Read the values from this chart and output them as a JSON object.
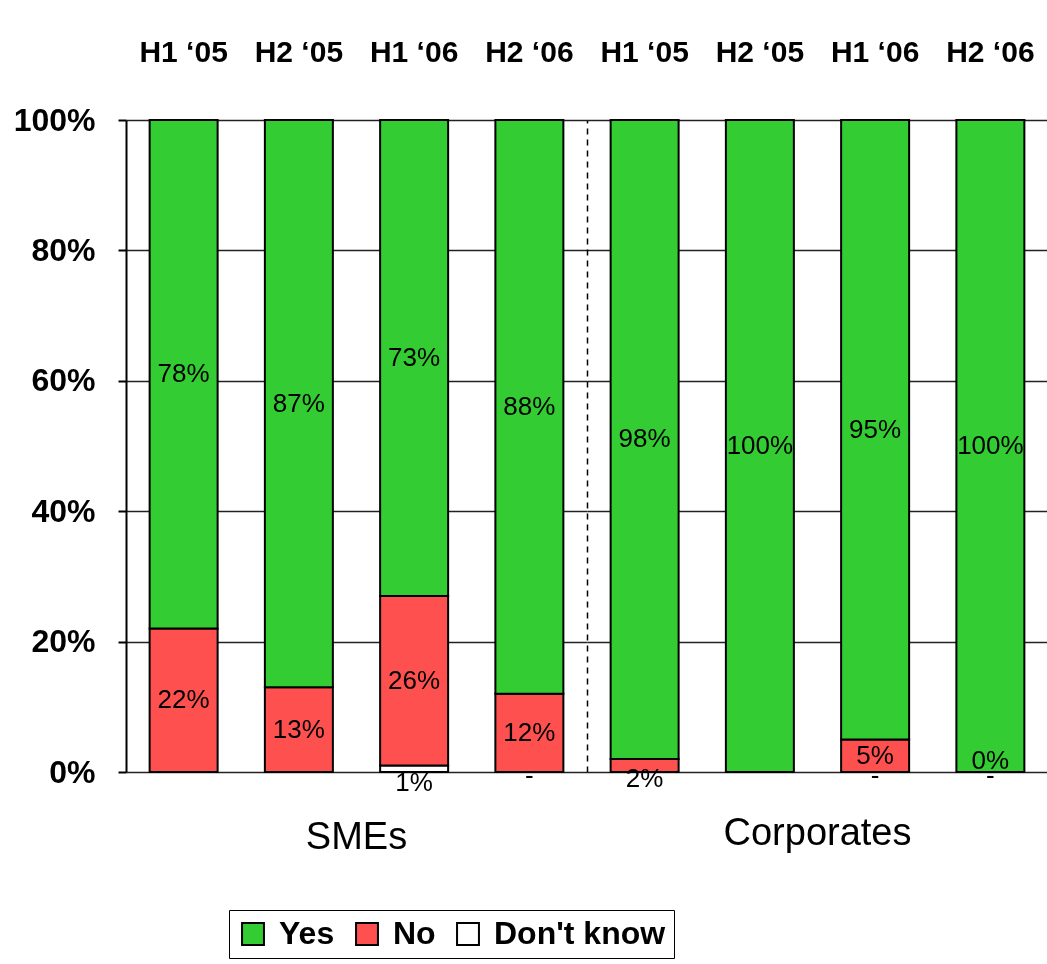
{
  "chart_data": [
    {
      "type": "bar",
      "stacked": true,
      "xlabel": "SMEs",
      "categories": [
        "H1 ‘05",
        "H2 ‘05",
        "H1 ‘06",
        "H2 ‘06"
      ],
      "series": [
        {
          "name": "Don't know",
          "color": "#ffffff",
          "values": [
            null,
            null,
            1,
            0
          ],
          "value_labels": [
            null,
            null,
            "1%",
            null
          ]
        },
        {
          "name": "No",
          "color": "#ff5050",
          "values": [
            22,
            13,
            26,
            12
          ],
          "value_labels": [
            "22%",
            "13%",
            "26%",
            "12%"
          ]
        },
        {
          "name": "Yes",
          "color": "#33cc33",
          "values": [
            78,
            87,
            73,
            88
          ],
          "value_labels": [
            "78%",
            "87%",
            "73%",
            "88%"
          ]
        }
      ],
      "annotations": [
        {
          "text": "-",
          "x": "H2 ‘06",
          "y": 0
        }
      ],
      "ylim": [
        0,
        100
      ],
      "yticks": [
        {
          "value": 0,
          "label": "0%"
        },
        {
          "value": 20,
          "label": "20%"
        },
        {
          "value": 40,
          "label": "40%"
        },
        {
          "value": 60,
          "label": "60%"
        },
        {
          "value": 80,
          "label": "80%"
        },
        {
          "value": 100,
          "label": "100%"
        }
      ],
      "grid": "y",
      "legend": "bottom"
    },
    {
      "type": "bar",
      "stacked": true,
      "xlabel": "Corporates",
      "categories": [
        "H1 ‘05",
        "H2 ‘05",
        "H1 ‘06",
        "H2 ‘06"
      ],
      "series": [
        {
          "name": "Don't know",
          "color": "#ffffff",
          "values": [
            null,
            null,
            0,
            0
          ]
        },
        {
          "name": "No",
          "color": "#ff5050",
          "values": [
            2,
            null,
            5,
            0
          ],
          "value_labels": [
            "2%",
            null,
            "5%",
            null
          ]
        },
        {
          "name": "Yes",
          "color": "#33cc33",
          "values": [
            98,
            100,
            95,
            100
          ],
          "value_labels": [
            "98%",
            "100%",
            "95%",
            "100%"
          ]
        }
      ],
      "annotations": [
        {
          "text": "-",
          "x": "H1 ‘06",
          "y": 0
        },
        {
          "text": "-",
          "x": "H2 ‘06",
          "y": 0
        },
        {
          "text": "0%",
          "x": "H2 ‘06",
          "y": 0
        }
      ],
      "ylim": [
        0,
        100
      ],
      "yticks": [
        {
          "value": 0,
          "label": "0%"
        },
        {
          "value": 20,
          "label": "20%"
        },
        {
          "value": 40,
          "label": "40%"
        },
        {
          "value": 60,
          "label": "60%"
        },
        {
          "value": 80,
          "label": "80%"
        },
        {
          "value": 100,
          "label": "100%"
        }
      ],
      "grid": "y",
      "tick_labels": "x"
    }
  ]
}
